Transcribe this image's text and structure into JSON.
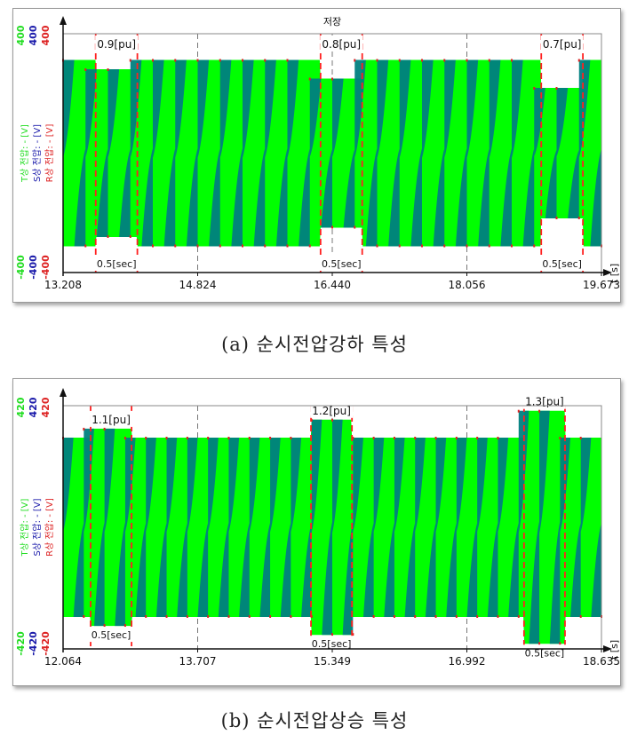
{
  "colors": {
    "t_phase": "#22dd22",
    "s_phase": "#1a1aaa",
    "r_phase": "#dd2222",
    "fill_light": "#00ff00",
    "fill_dark": "#008080",
    "event_line": "#ff2020"
  },
  "chart_data": [
    {
      "type": "line",
      "id": "sag",
      "title": "저장",
      "xlabel": "t [s]",
      "xticks": [
        "13.208",
        "14.824",
        "16.440",
        "18.056",
        "19.673"
      ],
      "xlim": [
        13.208,
        19.673
      ],
      "ylim": [
        -400,
        400
      ],
      "ylabels": [
        {
          "name": "T상 전압: - [V]",
          "color": "#22dd22",
          "top": "400",
          "bottom": "-400"
        },
        {
          "name": "S상 전압: - [V]",
          "color": "#1a1aaa",
          "top": "400",
          "bottom": "-400"
        },
        {
          "name": "R상 전압: - [V]",
          "color": "#dd2222",
          "top": "400",
          "bottom": "-400"
        }
      ],
      "nominal_amplitude": 1.0,
      "events": [
        {
          "start": 13.6,
          "end": 14.1,
          "pu": 0.9,
          "label": "0.9[pu]",
          "duration_label": "0.5[sec]"
        },
        {
          "start": 16.3,
          "end": 16.8,
          "pu": 0.8,
          "label": "0.8[pu]",
          "duration_label": "0.5[sec]"
        },
        {
          "start": 18.95,
          "end": 19.45,
          "pu": 0.7,
          "label": "0.7[pu]",
          "duration_label": "0.5[sec]"
        }
      ]
    },
    {
      "type": "line",
      "id": "swell",
      "title": "",
      "xlabel": "t [s]",
      "xticks": [
        "12.064",
        "13.707",
        "15.349",
        "16.992",
        "18.635"
      ],
      "xlim": [
        12.064,
        18.635
      ],
      "ylim": [
        -420,
        420
      ],
      "ylabels": [
        {
          "name": "T상 전압: - [V]",
          "color": "#22dd22",
          "top": "420",
          "bottom": "-420"
        },
        {
          "name": "S상 전압: - [V]",
          "color": "#1a1aaa",
          "top": "420",
          "bottom": "-420"
        },
        {
          "name": "R상 전압: - [V]",
          "color": "#dd2222",
          "top": "420",
          "bottom": "-420"
        }
      ],
      "nominal_amplitude": 1.0,
      "events": [
        {
          "start": 12.4,
          "end": 12.9,
          "pu": 1.1,
          "label": "1.1[pu]",
          "duration_label": "0.5[sec]"
        },
        {
          "start": 15.09,
          "end": 15.59,
          "pu": 1.2,
          "label": "1.2[pu]",
          "duration_label": "0.5[sec]"
        },
        {
          "start": 17.69,
          "end": 18.19,
          "pu": 1.3,
          "label": "1.3[pu]",
          "duration_label": "0.5[sec]"
        }
      ]
    }
  ],
  "captions": {
    "a": "(a) 순시전압강하 특성",
    "b": "(b) 순시전압상승 특성"
  }
}
